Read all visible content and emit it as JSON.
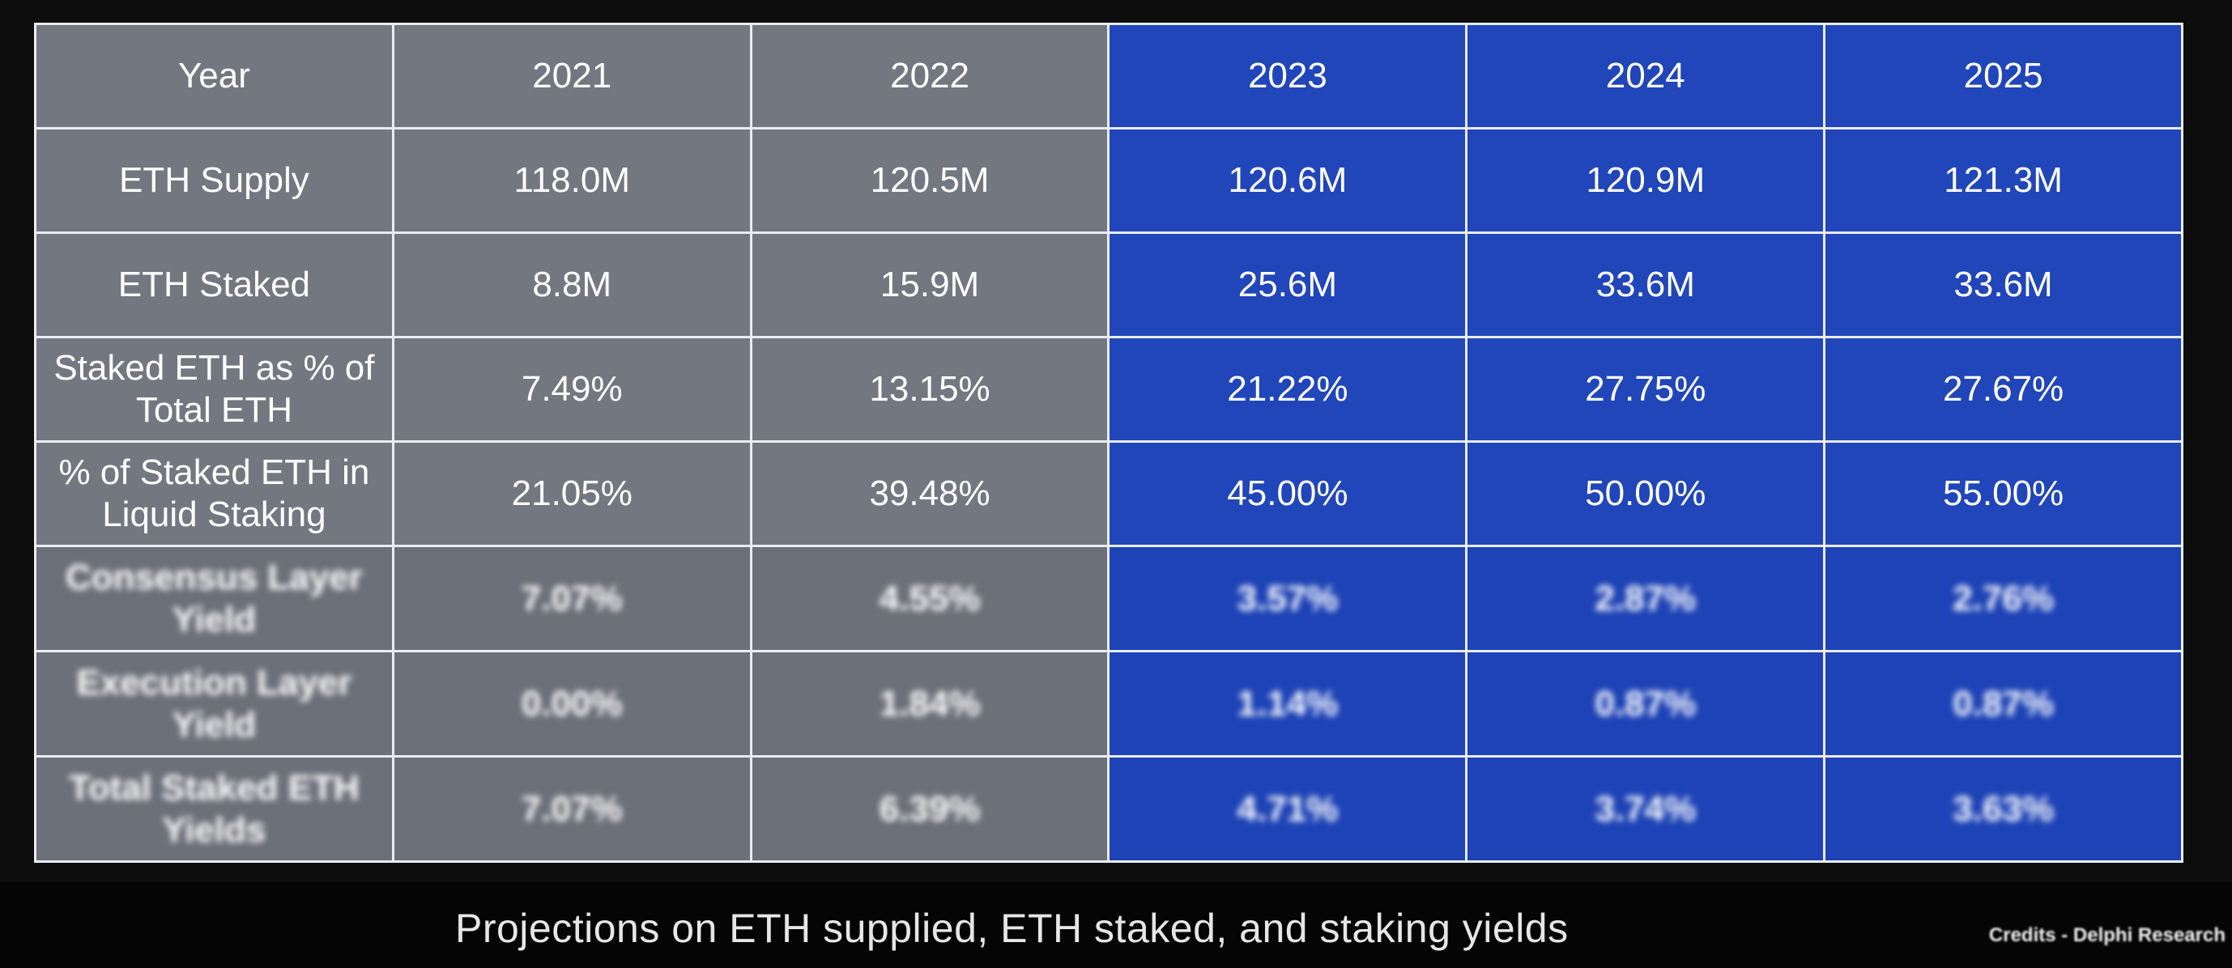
{
  "chart_data": {
    "type": "table",
    "columns": [
      "Year",
      "2021",
      "2022",
      "2023",
      "2024",
      "2025"
    ],
    "rows": [
      {
        "label": "ETH Supply",
        "values": [
          "118.0M",
          "120.5M",
          "120.6M",
          "120.9M",
          "121.3M"
        ]
      },
      {
        "label": "ETH Staked",
        "values": [
          "8.8M",
          "15.9M",
          "25.6M",
          "33.6M",
          "33.6M"
        ]
      },
      {
        "label": "Staked ETH as % of Total ETH",
        "values": [
          "7.49%",
          "13.15%",
          "21.22%",
          "27.75%",
          "27.67%"
        ]
      },
      {
        "label": "% of Staked ETH in Liquid Staking",
        "values": [
          "21.05%",
          "39.48%",
          "45.00%",
          "50.00%",
          "55.00%"
        ]
      },
      {
        "label": "Consensus Layer Yield",
        "values": [
          "7.07%",
          "4.55%",
          "3.57%",
          "2.87%",
          "2.76%"
        ]
      },
      {
        "label": "Execution Layer Yield",
        "values": [
          "0.00%",
          "1.84%",
          "1.14%",
          "0.87%",
          "0.87%"
        ]
      },
      {
        "label": "Total Staked ETH Yields",
        "values": [
          "7.07%",
          "6.39%",
          "4.71%",
          "3.74%",
          "3.63%"
        ]
      }
    ],
    "projected_from_column": "2023",
    "colors": {
      "historical": "#737780",
      "projected": "#2146b9",
      "border": "#e9ecf2",
      "text": "#ffffff"
    }
  },
  "caption": "Projections on ETH supplied, ETH staked, and staking yields",
  "credits": "Credits - Delphi Research"
}
